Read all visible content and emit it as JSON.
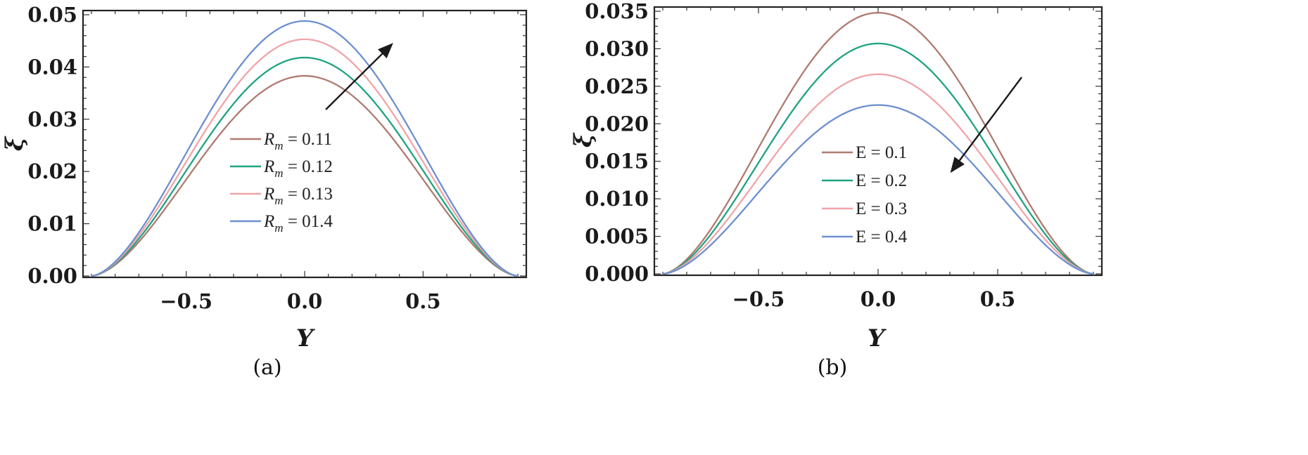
{
  "chart_data": [
    {
      "type": "line",
      "panel_caption": "(a)",
      "xlabel": "Y",
      "ylabel": "ξ",
      "xlim": [
        -0.9,
        0.9
      ],
      "ylim": [
        0,
        0.05
      ],
      "x_ticks": [
        "−0.5",
        "0.0",
        "0.5"
      ],
      "x_tick_values": [
        -0.5,
        0.0,
        0.5
      ],
      "y_ticks": [
        "0.00",
        "0.01",
        "0.02",
        "0.03",
        "0.04",
        "0.05"
      ],
      "y_tick_values": [
        0,
        0.01,
        0.02,
        0.03,
        0.04,
        0.05
      ],
      "grid": false,
      "legend_position": "center",
      "arrow_direction": "increasing",
      "series": [
        {
          "name": "R_m = 0.11",
          "legend_main": "R",
          "legend_sub": "m",
          "legend_rest": " = 0.11",
          "color": "#b07a70",
          "peak": 0.0383
        },
        {
          "name": "R_m = 0.12",
          "legend_main": "R",
          "legend_sub": "m",
          "legend_rest": " = 0.12",
          "color": "#1fa37f",
          "peak": 0.0418
        },
        {
          "name": "R_m = 0.13",
          "legend_main": "R",
          "legend_sub": "m",
          "legend_rest": " = 0.13",
          "color": "#f0a4a8",
          "peak": 0.0453
        },
        {
          "name": "R_m = 01.4",
          "legend_main": "R",
          "legend_sub": "m",
          "legend_rest": " = 01.4",
          "color": "#6d8fd1",
          "peak": 0.0488
        }
      ]
    },
    {
      "type": "line",
      "panel_caption": "(b)",
      "xlabel": "Y",
      "ylabel": "ξ",
      "xlim": [
        -0.9,
        0.9
      ],
      "ylim": [
        0,
        0.035
      ],
      "x_ticks": [
        "−0.5",
        "0.0",
        "0.5"
      ],
      "x_tick_values": [
        -0.5,
        0.0,
        0.5
      ],
      "y_ticks": [
        "0.000",
        "0.005",
        "0.010",
        "0.015",
        "0.020",
        "0.025",
        "0.030",
        "0.035"
      ],
      "y_tick_values": [
        0,
        0.005,
        0.01,
        0.015,
        0.02,
        0.025,
        0.03,
        0.035
      ],
      "grid": false,
      "legend_position": "center",
      "arrow_direction": "decreasing",
      "series": [
        {
          "name": "E = 0.1",
          "legend_main": "E",
          "legend_sub": "",
          "legend_rest": " = 0.1",
          "color": "#b07a70",
          "peak": 0.0348
        },
        {
          "name": "E = 0.2",
          "legend_main": "E",
          "legend_sub": "",
          "legend_rest": " = 0.2",
          "color": "#1fa37f",
          "peak": 0.0307
        },
        {
          "name": "E = 0.3",
          "legend_main": "E",
          "legend_sub": "",
          "legend_rest": " = 0.3",
          "color": "#f0a4a8",
          "peak": 0.0266
        },
        {
          "name": "E = 0.4",
          "legend_main": "E",
          "legend_sub": "",
          "legend_rest": " = 0.4",
          "color": "#6d8fd1",
          "peak": 0.0225
        }
      ]
    }
  ]
}
